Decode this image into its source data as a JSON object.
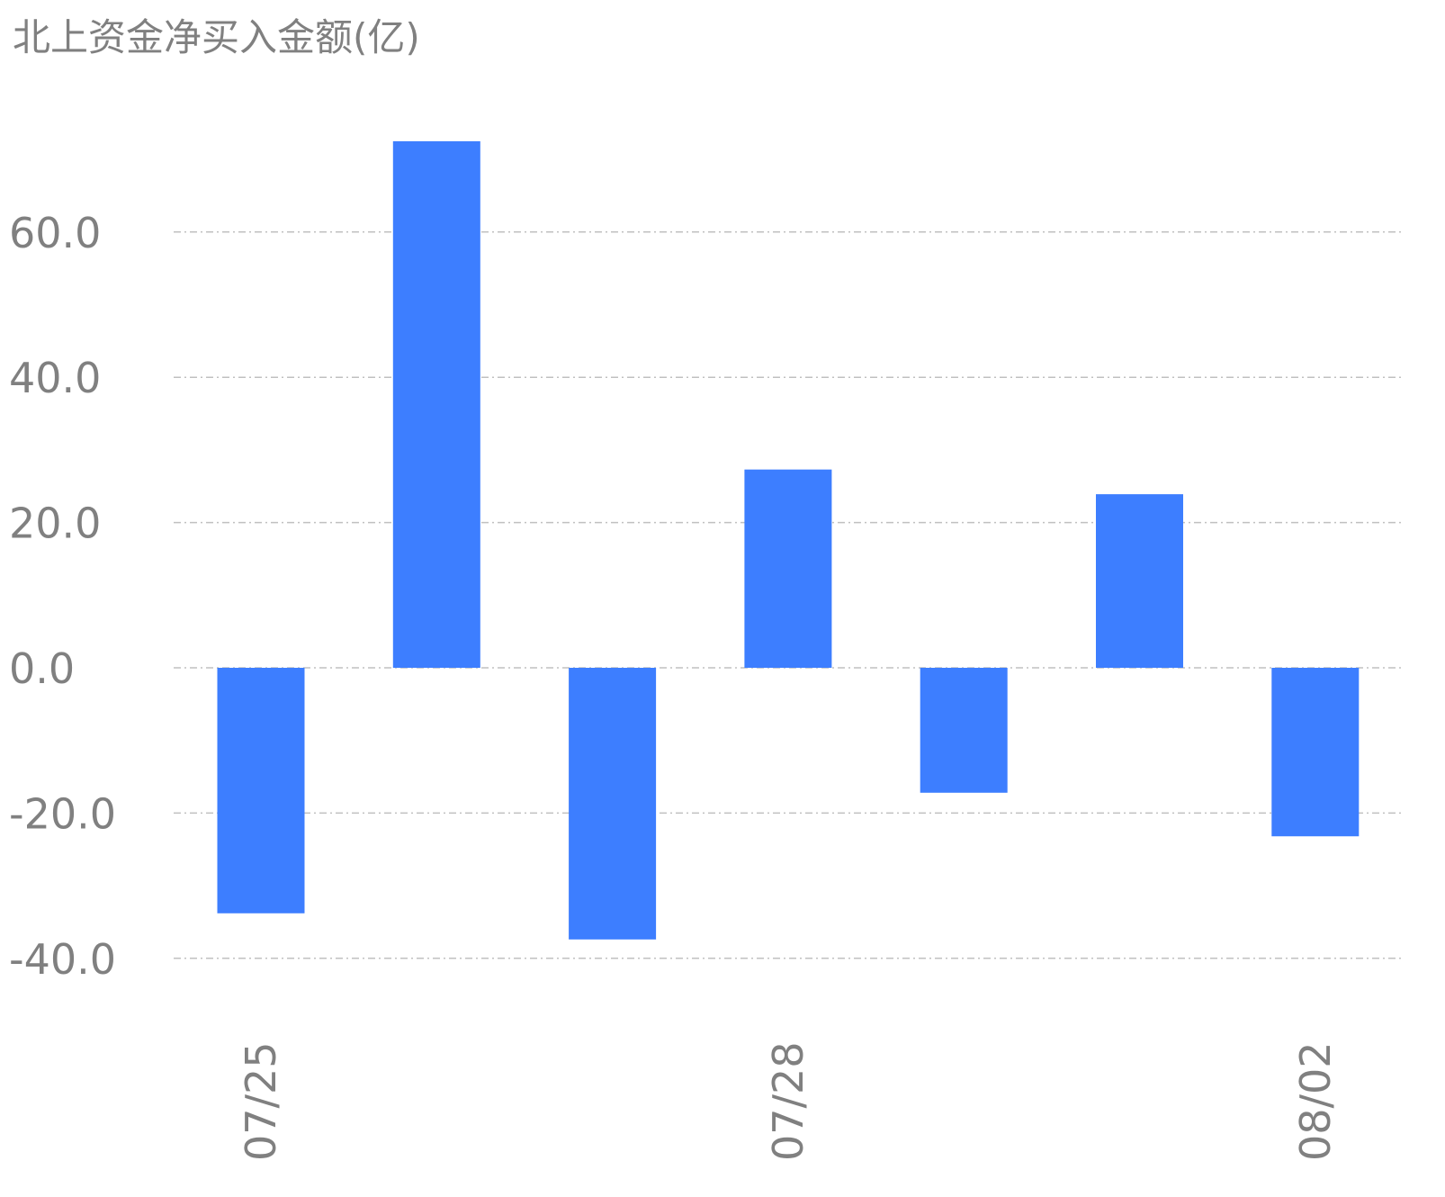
{
  "chart_data": {
    "type": "bar",
    "title": "北上资金净买入金额(亿)",
    "categories": [
      "07/25",
      "",
      "",
      "07/28",
      "",
      "",
      "08/02"
    ],
    "values": [
      -33.8,
      72.5,
      -37.4,
      27.3,
      -17.2,
      23.9,
      -23.2
    ],
    "yticks": [
      "60.0",
      "40.0",
      "20.0",
      "0.0",
      "-20.0",
      "-40.0"
    ],
    "ytick_values": [
      60,
      40,
      20,
      0,
      -20,
      -40
    ],
    "ylim": [
      -40,
      75
    ],
    "grid": true,
    "grid_style": "dash-dot",
    "bar_color": "#3d7eff",
    "text_color": "#808080",
    "grid_color": "#c0c0c0"
  }
}
